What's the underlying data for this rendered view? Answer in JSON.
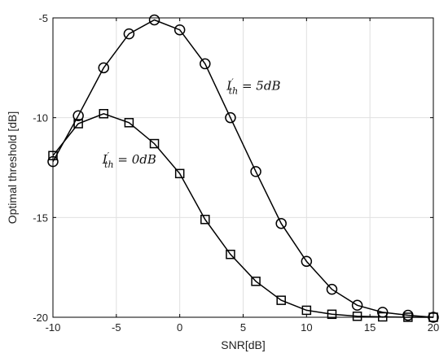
{
  "chart_data": {
    "type": "line",
    "xlabel": "SNR[dB]",
    "ylabel": "Optimal threshold [dB]",
    "xlim": [
      -10,
      20
    ],
    "ylim": [
      -20,
      -5
    ],
    "xticks": [
      -10,
      -5,
      0,
      5,
      10,
      15,
      20
    ],
    "yticks": [
      -20,
      -15,
      -10,
      -5
    ],
    "grid": true,
    "series": [
      {
        "name": "I'_th = 5dB",
        "marker": "circle",
        "color": "#000000",
        "x": [
          -10,
          -8,
          -6,
          -4,
          -2,
          0,
          2,
          4,
          6,
          8,
          10,
          12,
          14,
          16,
          18,
          20
        ],
        "y": [
          -12.2,
          -9.9,
          -7.5,
          -5.8,
          -5.1,
          -5.6,
          -7.3,
          -10.0,
          -12.7,
          -15.3,
          -17.2,
          -18.6,
          -19.4,
          -19.75,
          -19.9,
          -20.0
        ]
      },
      {
        "name": "I'_th = 0dB",
        "marker": "square",
        "color": "#000000",
        "x": [
          -10,
          -8,
          -6,
          -4,
          -2,
          0,
          2,
          4,
          6,
          8,
          10,
          12,
          14,
          16,
          18,
          20
        ],
        "y": [
          -11.9,
          -10.3,
          -9.8,
          -10.25,
          -11.3,
          -12.8,
          -15.1,
          -16.85,
          -18.2,
          -19.15,
          -19.65,
          -19.85,
          -19.95,
          -19.98,
          -20.0,
          -20.0
        ]
      }
    ],
    "annotations": [
      {
        "text_main": "I",
        "text_prime": "′",
        "text_sub": "th",
        "text_rest": " = 5dB",
        "x": 3.7,
        "y": -8.6
      },
      {
        "text_main": "I",
        "text_prime": "′",
        "text_sub": "th",
        "text_rest": " = 0dB",
        "x": -6.1,
        "y": -12.3
      }
    ]
  }
}
